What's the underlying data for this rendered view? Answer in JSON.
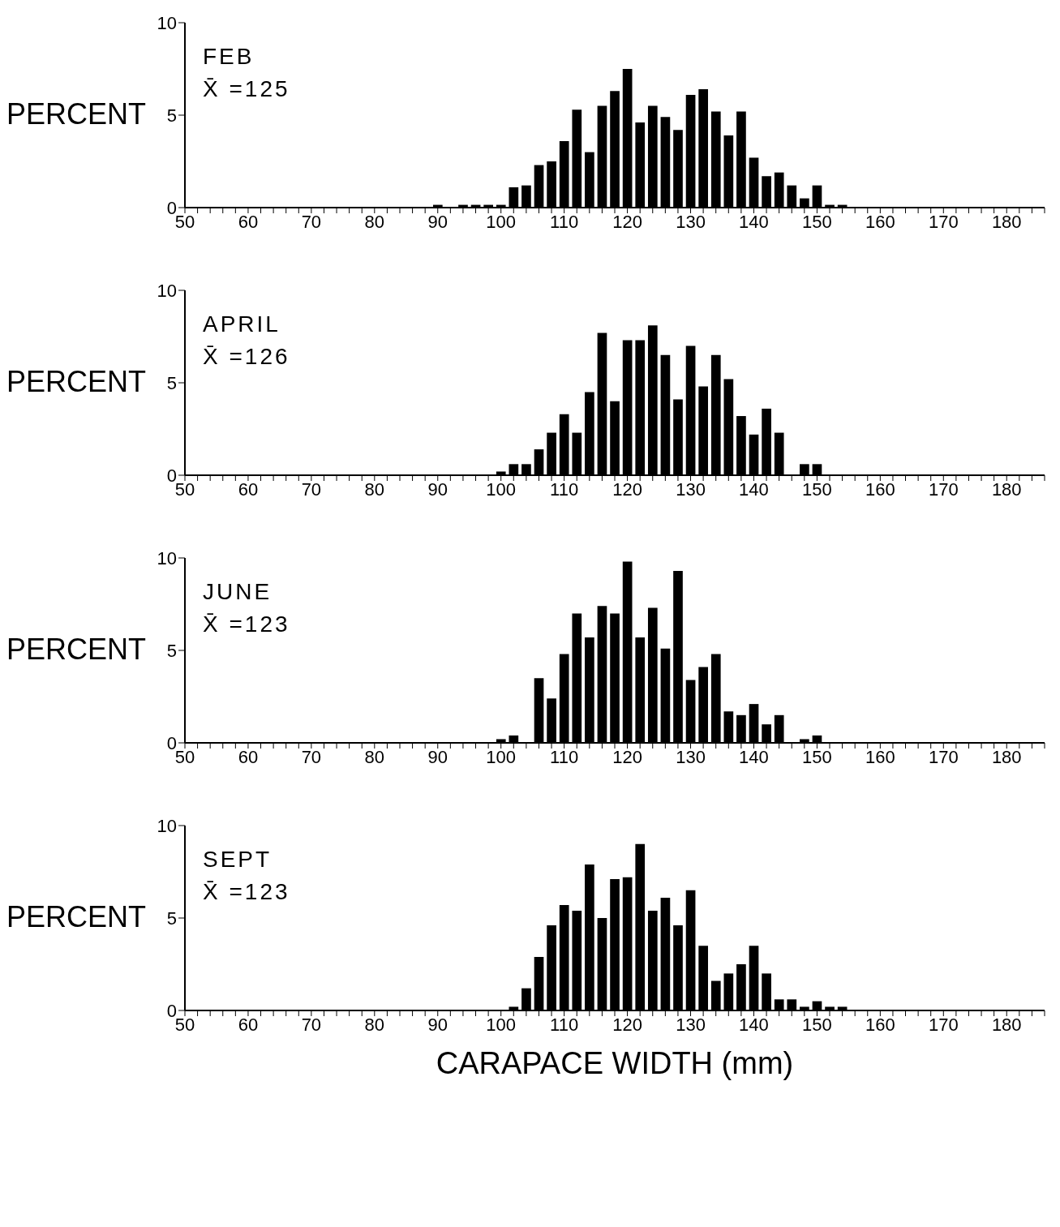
{
  "chart_data": [
    {
      "type": "bar",
      "title": "FEB",
      "annotations": [
        "X̄ =125"
      ],
      "ylabel": "PERCENT",
      "color": "#000000",
      "x": [
        90,
        94,
        96,
        98,
        100,
        102,
        104,
        106,
        108,
        110,
        112,
        114,
        116,
        118,
        120,
        122,
        124,
        126,
        128,
        130,
        132,
        134,
        136,
        138,
        140,
        142,
        144,
        146,
        148,
        150,
        152,
        154
      ],
      "values": [
        0.15,
        0.15,
        0.15,
        0.15,
        0.15,
        1.1,
        1.2,
        2.3,
        2.5,
        3.6,
        5.3,
        3.0,
        5.5,
        6.3,
        7.5,
        4.6,
        5.5,
        4.9,
        4.2,
        6.1,
        6.4,
        5.2,
        3.9,
        5.2,
        2.7,
        1.7,
        1.9,
        1.2,
        0.5,
        1.2,
        0.15,
        0.15
      ],
      "xlim": [
        50,
        186
      ],
      "ylim": [
        0,
        10
      ],
      "yticks": [
        0,
        5,
        10
      ],
      "xticks": [
        50,
        {
          "value": 52,
          "label": null
        },
        {
          "value": 54,
          "label": null
        },
        {
          "value": 56,
          "label": null
        },
        {
          "value": 58,
          "label": null
        },
        60,
        {
          "value": 62,
          "label": null
        },
        {
          "value": 64,
          "label": null
        },
        {
          "value": 66,
          "label": null
        },
        {
          "value": 68,
          "label": null
        },
        70,
        {
          "value": 72,
          "label": null
        },
        {
          "value": 74,
          "label": null
        },
        {
          "value": 76,
          "label": null
        },
        {
          "value": 78,
          "label": null
        },
        80,
        {
          "value": 82,
          "label": null
        },
        {
          "value": 84,
          "label": null
        },
        {
          "value": 86,
          "label": null
        },
        {
          "value": 88,
          "label": null
        },
        90,
        {
          "value": 92,
          "label": null
        },
        {
          "value": 94,
          "label": null
        },
        {
          "value": 96,
          "label": null
        },
        {
          "value": 98,
          "label": null
        },
        100,
        {
          "value": 102,
          "label": null
        },
        {
          "value": 104,
          "label": null
        },
        {
          "value": 106,
          "label": null
        },
        {
          "value": 108,
          "label": null
        },
        110,
        {
          "value": 112,
          "label": null
        },
        {
          "value": 114,
          "label": null
        },
        {
          "value": 116,
          "label": null
        },
        {
          "value": 118,
          "label": null
        },
        120,
        {
          "value": 122,
          "label": null
        },
        {
          "value": 124,
          "label": null
        },
        {
          "value": 126,
          "label": null
        },
        {
          "value": 128,
          "label": null
        },
        130,
        {
          "value": 132,
          "label": null
        },
        {
          "value": 134,
          "label": null
        },
        {
          "value": 136,
          "label": null
        },
        {
          "value": 138,
          "label": null
        },
        140,
        {
          "value": 142,
          "label": null
        },
        {
          "value": 144,
          "label": null
        },
        {
          "value": 146,
          "label": null
        },
        {
          "value": 148,
          "label": null
        },
        150,
        {
          "value": 152,
          "label": null
        },
        {
          "value": 154,
          "label": null
        },
        {
          "value": 156,
          "label": null
        },
        {
          "value": 158,
          "label": null
        },
        160,
        {
          "value": 162,
          "label": null
        },
        {
          "value": 164,
          "label": null
        },
        {
          "value": 166,
          "label": null
        },
        {
          "value": 168,
          "label": null
        },
        170,
        {
          "value": 172,
          "label": null
        },
        {
          "value": 174,
          "label": null
        },
        {
          "value": 176,
          "label": null
        },
        {
          "value": 178,
          "label": null
        },
        180,
        {
          "value": 182,
          "label": null
        },
        {
          "value": 184,
          "label": null
        },
        {
          "value": 186,
          "label": null
        }
      ]
    },
    {
      "type": "bar",
      "title": "APRIL",
      "annotations": [
        "X̄ =126"
      ],
      "ylabel": "PERCENT",
      "color": "#000000",
      "x": [
        100,
        102,
        104,
        106,
        108,
        110,
        112,
        114,
        116,
        118,
        120,
        122,
        124,
        126,
        128,
        130,
        132,
        134,
        136,
        138,
        140,
        142,
        144,
        148,
        150
      ],
      "values": [
        0.2,
        0.6,
        0.6,
        1.4,
        2.3,
        3.3,
        2.3,
        4.5,
        7.7,
        4.0,
        7.3,
        7.3,
        8.1,
        6.5,
        4.1,
        7.0,
        4.8,
        6.5,
        5.2,
        3.2,
        2.2,
        3.6,
        2.3,
        0.6,
        0.6
      ],
      "xlim": [
        50,
        186
      ],
      "ylim": [
        0,
        10
      ],
      "yticks": [
        0,
        5,
        10
      ],
      "xticks": [
        50,
        {
          "value": 52,
          "label": null
        },
        {
          "value": 54,
          "label": null
        },
        {
          "value": 56,
          "label": null
        },
        {
          "value": 58,
          "label": null
        },
        60,
        {
          "value": 62,
          "label": null
        },
        {
          "value": 64,
          "label": null
        },
        {
          "value": 66,
          "label": null
        },
        {
          "value": 68,
          "label": null
        },
        70,
        {
          "value": 72,
          "label": null
        },
        {
          "value": 74,
          "label": null
        },
        {
          "value": 76,
          "label": null
        },
        {
          "value": 78,
          "label": null
        },
        80,
        {
          "value": 82,
          "label": null
        },
        {
          "value": 84,
          "label": null
        },
        {
          "value": 86,
          "label": null
        },
        {
          "value": 88,
          "label": null
        },
        90,
        {
          "value": 92,
          "label": null
        },
        {
          "value": 94,
          "label": null
        },
        {
          "value": 96,
          "label": null
        },
        {
          "value": 98,
          "label": null
        },
        100,
        {
          "value": 102,
          "label": null
        },
        {
          "value": 104,
          "label": null
        },
        {
          "value": 106,
          "label": null
        },
        {
          "value": 108,
          "label": null
        },
        110,
        {
          "value": 112,
          "label": null
        },
        {
          "value": 114,
          "label": null
        },
        {
          "value": 116,
          "label": null
        },
        {
          "value": 118,
          "label": null
        },
        120,
        {
          "value": 122,
          "label": null
        },
        {
          "value": 124,
          "label": null
        },
        {
          "value": 126,
          "label": null
        },
        {
          "value": 128,
          "label": null
        },
        130,
        {
          "value": 132,
          "label": null
        },
        {
          "value": 134,
          "label": null
        },
        {
          "value": 136,
          "label": null
        },
        {
          "value": 138,
          "label": null
        },
        140,
        {
          "value": 142,
          "label": null
        },
        {
          "value": 144,
          "label": null
        },
        {
          "value": 146,
          "label": null
        },
        {
          "value": 148,
          "label": null
        },
        150,
        {
          "value": 152,
          "label": null
        },
        {
          "value": 154,
          "label": null
        },
        {
          "value": 156,
          "label": null
        },
        {
          "value": 158,
          "label": null
        },
        160,
        {
          "value": 162,
          "label": null
        },
        {
          "value": 164,
          "label": null
        },
        {
          "value": 166,
          "label": null
        },
        {
          "value": 168,
          "label": null
        },
        170,
        {
          "value": 172,
          "label": null
        },
        {
          "value": 174,
          "label": null
        },
        {
          "value": 176,
          "label": null
        },
        {
          "value": 178,
          "label": null
        },
        180,
        {
          "value": 182,
          "label": null
        },
        {
          "value": 184,
          "label": null
        },
        {
          "value": 186,
          "label": null
        }
      ]
    },
    {
      "type": "bar",
      "title": "JUNE",
      "annotations": [
        "X̄ =123"
      ],
      "ylabel": "PERCENT",
      "color": "#000000",
      "x": [
        100,
        102,
        106,
        108,
        110,
        112,
        114,
        116,
        118,
        120,
        122,
        124,
        126,
        128,
        130,
        132,
        134,
        136,
        138,
        140,
        142,
        144,
        148,
        150
      ],
      "values": [
        0.2,
        0.4,
        3.5,
        2.4,
        4.8,
        7.0,
        5.7,
        7.4,
        7.0,
        9.8,
        5.7,
        7.3,
        5.1,
        9.3,
        3.4,
        4.1,
        4.8,
        1.7,
        1.5,
        2.1,
        1.0,
        1.5,
        0.2,
        0.4
      ],
      "xlim": [
        50,
        186
      ],
      "ylim": [
        0,
        10
      ],
      "yticks": [
        0,
        5,
        10
      ],
      "xticks": [
        50,
        {
          "value": 52,
          "label": null
        },
        {
          "value": 54,
          "label": null
        },
        {
          "value": 56,
          "label": null
        },
        {
          "value": 58,
          "label": null
        },
        60,
        {
          "value": 62,
          "label": null
        },
        {
          "value": 64,
          "label": null
        },
        {
          "value": 66,
          "label": null
        },
        {
          "value": 68,
          "label": null
        },
        70,
        {
          "value": 72,
          "label": null
        },
        {
          "value": 74,
          "label": null
        },
        {
          "value": 76,
          "label": null
        },
        {
          "value": 78,
          "label": null
        },
        80,
        {
          "value": 82,
          "label": null
        },
        {
          "value": 84,
          "label": null
        },
        {
          "value": 86,
          "label": null
        },
        {
          "value": 88,
          "label": null
        },
        90,
        {
          "value": 92,
          "label": null
        },
        {
          "value": 94,
          "label": null
        },
        {
          "value": 96,
          "label": null
        },
        {
          "value": 98,
          "label": null
        },
        100,
        {
          "value": 102,
          "label": null
        },
        {
          "value": 104,
          "label": null
        },
        {
          "value": 106,
          "label": null
        },
        {
          "value": 108,
          "label": null
        },
        110,
        {
          "value": 112,
          "label": null
        },
        {
          "value": 114,
          "label": null
        },
        {
          "value": 116,
          "label": null
        },
        {
          "value": 118,
          "label": null
        },
        120,
        {
          "value": 122,
          "label": null
        },
        {
          "value": 124,
          "label": null
        },
        {
          "value": 126,
          "label": null
        },
        {
          "value": 128,
          "label": null
        },
        130,
        {
          "value": 132,
          "label": null
        },
        {
          "value": 134,
          "label": null
        },
        {
          "value": 136,
          "label": null
        },
        {
          "value": 138,
          "label": null
        },
        140,
        {
          "value": 142,
          "label": null
        },
        {
          "value": 144,
          "label": null
        },
        {
          "value": 146,
          "label": null
        },
        {
          "value": 148,
          "label": null
        },
        150,
        {
          "value": 152,
          "label": null
        },
        {
          "value": 154,
          "label": null
        },
        {
          "value": 156,
          "label": null
        },
        {
          "value": 158,
          "label": null
        },
        160,
        {
          "value": 162,
          "label": null
        },
        {
          "value": 164,
          "label": null
        },
        {
          "value": 166,
          "label": null
        },
        {
          "value": 168,
          "label": null
        },
        170,
        {
          "value": 172,
          "label": null
        },
        {
          "value": 174,
          "label": null
        },
        {
          "value": 176,
          "label": null
        },
        {
          "value": 178,
          "label": null
        },
        180,
        {
          "value": 182,
          "label": null
        },
        {
          "value": 184,
          "label": null
        },
        {
          "value": 186,
          "label": null
        }
      ]
    },
    {
      "type": "bar",
      "title": "SEPT",
      "annotations": [
        "X̄ =123"
      ],
      "ylabel": "PERCENT",
      "xlabel": "CARAPACE WIDTH (mm)",
      "color": "#000000",
      "x": [
        102,
        104,
        106,
        108,
        110,
        112,
        114,
        116,
        118,
        120,
        122,
        124,
        126,
        128,
        130,
        132,
        134,
        136,
        138,
        140,
        142,
        144,
        146,
        148,
        150,
        152,
        154
      ],
      "values": [
        0.2,
        1.2,
        2.9,
        4.6,
        5.7,
        5.4,
        7.9,
        5.0,
        7.1,
        7.2,
        9.0,
        5.4,
        6.1,
        4.6,
        6.5,
        3.5,
        1.6,
        2.0,
        2.5,
        3.5,
        2.0,
        0.6,
        0.6,
        0.2,
        0.5,
        0.2,
        0.2
      ],
      "xlim": [
        50,
        186
      ],
      "ylim": [
        0,
        10
      ],
      "yticks": [
        0,
        5,
        10
      ],
      "xticks": [
        50,
        {
          "value": 52,
          "label": null
        },
        {
          "value": 54,
          "label": null
        },
        {
          "value": 56,
          "label": null
        },
        {
          "value": 58,
          "label": null
        },
        60,
        {
          "value": 62,
          "label": null
        },
        {
          "value": 64,
          "label": null
        },
        {
          "value": 66,
          "label": null
        },
        {
          "value": 68,
          "label": null
        },
        70,
        {
          "value": 72,
          "label": null
        },
        {
          "value": 74,
          "label": null
        },
        {
          "value": 76,
          "label": null
        },
        {
          "value": 78,
          "label": null
        },
        80,
        {
          "value": 82,
          "label": null
        },
        {
          "value": 84,
          "label": null
        },
        {
          "value": 86,
          "label": null
        },
        {
          "value": 88,
          "label": null
        },
        90,
        {
          "value": 92,
          "label": null
        },
        {
          "value": 94,
          "label": null
        },
        {
          "value": 96,
          "label": null
        },
        {
          "value": 98,
          "label": null
        },
        100,
        {
          "value": 102,
          "label": null
        },
        {
          "value": 104,
          "label": null
        },
        {
          "value": 106,
          "label": null
        },
        {
          "value": 108,
          "label": null
        },
        110,
        {
          "value": 112,
          "label": null
        },
        {
          "value": 114,
          "label": null
        },
        {
          "value": 116,
          "label": null
        },
        {
          "value": 118,
          "label": null
        },
        120,
        {
          "value": 122,
          "label": null
        },
        {
          "value": 124,
          "label": null
        },
        {
          "value": 126,
          "label": null
        },
        {
          "value": 128,
          "label": null
        },
        130,
        {
          "value": 132,
          "label": null
        },
        {
          "value": 134,
          "label": null
        },
        {
          "value": 136,
          "label": null
        },
        {
          "value": 138,
          "label": null
        },
        140,
        {
          "value": 142,
          "label": null
        },
        {
          "value": 144,
          "label": null
        },
        {
          "value": 146,
          "label": null
        },
        {
          "value": 148,
          "label": null
        },
        150,
        {
          "value": 152,
          "label": null
        },
        {
          "value": 154,
          "label": null
        },
        {
          "value": 156,
          "label": null
        },
        {
          "value": 158,
          "label": null
        },
        160,
        {
          "value": 162,
          "label": null
        },
        {
          "value": 164,
          "label": null
        },
        {
          "value": 166,
          "label": null
        },
        {
          "value": 168,
          "label": null
        },
        170,
        {
          "value": 172,
          "label": null
        },
        {
          "value": 174,
          "label": null
        },
        {
          "value": 176,
          "label": null
        },
        {
          "value": 178,
          "label": null
        },
        180,
        {
          "value": 182,
          "label": null
        },
        {
          "value": 184,
          "label": null
        },
        {
          "value": 186,
          "label": null
        }
      ]
    }
  ]
}
